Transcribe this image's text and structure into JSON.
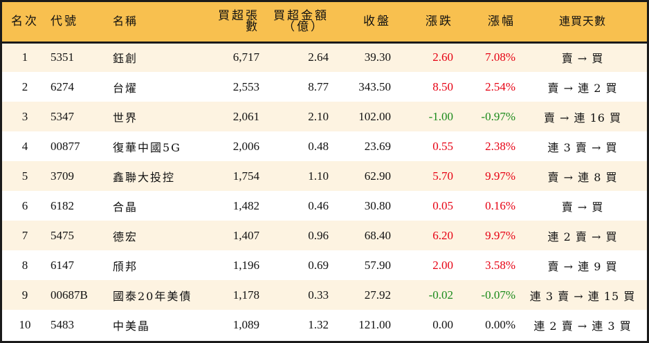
{
  "table": {
    "headers": {
      "rank": "名次",
      "code": "代號",
      "name": "名稱",
      "net_buy_lots": "買超張數",
      "net_buy_amount": "買超金額",
      "net_buy_amount_unit": "（億）",
      "close": "收盤",
      "change": "漲跌",
      "change_pct": "漲幅",
      "streak": "連買天數"
    },
    "colors": {
      "header_bg": "#f8c04f",
      "alt_row_bg": "#fdf3e1",
      "up": "#e60012",
      "down": "#1a8a1a",
      "flat": "#111111",
      "border": "#1a1a1a"
    },
    "rows": [
      {
        "rank": "1",
        "code": "5351",
        "name": "鈺創",
        "net_buy_lots": "6,717",
        "net_buy_amount": "2.64",
        "close": "39.30",
        "change": "2.60",
        "change_pct": "7.08%",
        "direction": "up",
        "streak": "賣 → 買"
      },
      {
        "rank": "2",
        "code": "6274",
        "name": "台燿",
        "net_buy_lots": "2,553",
        "net_buy_amount": "8.77",
        "close": "343.50",
        "change": "8.50",
        "change_pct": "2.54%",
        "direction": "up",
        "streak": "賣 → 連 2 買"
      },
      {
        "rank": "3",
        "code": "5347",
        "name": "世界",
        "net_buy_lots": "2,061",
        "net_buy_amount": "2.10",
        "close": "102.00",
        "change": "-1.00",
        "change_pct": "-0.97%",
        "direction": "down",
        "streak": "賣 → 連 16 買"
      },
      {
        "rank": "4",
        "code": "00877",
        "name": "復華中國5G",
        "net_buy_lots": "2,006",
        "net_buy_amount": "0.48",
        "close": "23.69",
        "change": "0.55",
        "change_pct": "2.38%",
        "direction": "up",
        "streak": "連 3 賣 → 買"
      },
      {
        "rank": "5",
        "code": "3709",
        "name": "鑫聯大投控",
        "net_buy_lots": "1,754",
        "net_buy_amount": "1.10",
        "close": "62.90",
        "change": "5.70",
        "change_pct": "9.97%",
        "direction": "up",
        "streak": "賣 → 連 8 買"
      },
      {
        "rank": "6",
        "code": "6182",
        "name": "合晶",
        "net_buy_lots": "1,482",
        "net_buy_amount": "0.46",
        "close": "30.80",
        "change": "0.05",
        "change_pct": "0.16%",
        "direction": "up",
        "streak": "賣 → 買"
      },
      {
        "rank": "7",
        "code": "5475",
        "name": "德宏",
        "net_buy_lots": "1,407",
        "net_buy_amount": "0.96",
        "close": "68.40",
        "change": "6.20",
        "change_pct": "9.97%",
        "direction": "up",
        "streak": "連 2 賣 → 買"
      },
      {
        "rank": "8",
        "code": "6147",
        "name": "頎邦",
        "net_buy_lots": "1,196",
        "net_buy_amount": "0.69",
        "close": "57.90",
        "change": "2.00",
        "change_pct": "3.58%",
        "direction": "up",
        "streak": "賣 → 連 9 買"
      },
      {
        "rank": "9",
        "code": "00687B",
        "name": "國泰20年美債",
        "net_buy_lots": "1,178",
        "net_buy_amount": "0.33",
        "close": "27.92",
        "change": "-0.02",
        "change_pct": "-0.07%",
        "direction": "down",
        "streak": "連 3 賣 → 連 15 買"
      },
      {
        "rank": "10",
        "code": "5483",
        "name": "中美晶",
        "net_buy_lots": "1,089",
        "net_buy_amount": "1.32",
        "close": "121.00",
        "change": "0.00",
        "change_pct": "0.00%",
        "direction": "flat",
        "streak": "連 2 賣 → 連 3 買"
      }
    ]
  }
}
